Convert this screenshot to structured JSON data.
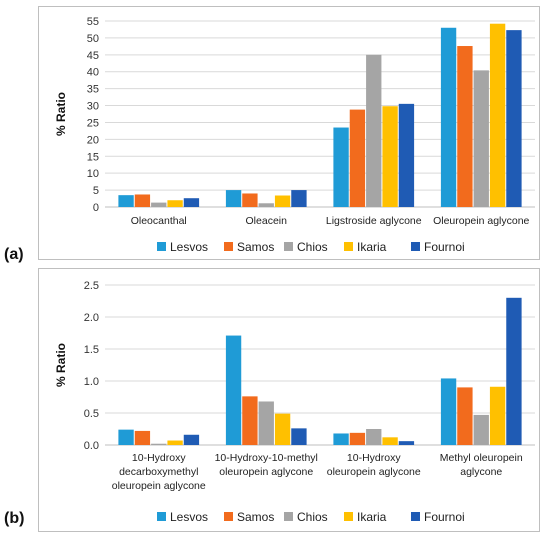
{
  "panel_labels": [
    "(a)",
    "(b)"
  ],
  "chart_data": [
    {
      "type": "bar",
      "ylabel": "% Ratio",
      "ylim": [
        0,
        55
      ],
      "yticks": [
        0,
        5,
        10,
        15,
        20,
        25,
        30,
        35,
        40,
        45,
        50,
        55
      ],
      "categories": [
        [
          "Oleocanthal"
        ],
        [
          "Oleacein"
        ],
        [
          "Ligstroside aglycone"
        ],
        [
          "Oleuropein aglycone"
        ]
      ],
      "series": [
        {
          "name": "Lesvos",
          "color": "#1f9bd6",
          "values": [
            3.5,
            5.0,
            23.5,
            53.0
          ]
        },
        {
          "name": "Samos",
          "color": "#f26b1d",
          "values": [
            3.7,
            4.0,
            28.8,
            47.6
          ]
        },
        {
          "name": "Chios",
          "color": "#a5a5a5",
          "values": [
            1.3,
            1.1,
            45.0,
            40.4
          ]
        },
        {
          "name": "Ikaria",
          "color": "#ffc000",
          "values": [
            2.0,
            3.4,
            29.8,
            54.2
          ]
        },
        {
          "name": "Fournoi",
          "color": "#1f5bb4",
          "values": [
            2.6,
            5.0,
            30.5,
            52.3
          ]
        }
      ],
      "legend": "bottom",
      "grid": "horizontal"
    },
    {
      "type": "bar",
      "ylabel": "% Ratio",
      "ylim": [
        0,
        2.5
      ],
      "yticks": [
        "0.0",
        "0.5",
        "1.0",
        "1.5",
        "2.0",
        "2.5"
      ],
      "categories": [
        [
          "10-Hydroxy",
          "decarboxymethyl",
          "oleuropein aglycone"
        ],
        [
          "10-Hydroxy-10-methyl",
          "oleuropein aglycone"
        ],
        [
          "10-Hydroxy",
          "oleuropein aglycone"
        ],
        [
          "Methyl oleuropein",
          "aglycone"
        ]
      ],
      "series": [
        {
          "name": "Lesvos",
          "color": "#1f9bd6",
          "values": [
            0.24,
            1.71,
            0.18,
            1.04
          ]
        },
        {
          "name": "Samos",
          "color": "#f26b1d",
          "values": [
            0.22,
            0.76,
            0.19,
            0.9
          ]
        },
        {
          "name": "Chios",
          "color": "#a5a5a5",
          "values": [
            0.02,
            0.68,
            0.25,
            0.47
          ]
        },
        {
          "name": "Ikaria",
          "color": "#ffc000",
          "values": [
            0.07,
            0.49,
            0.12,
            0.91
          ]
        },
        {
          "name": "Fournoi",
          "color": "#1f5bb4",
          "values": [
            0.16,
            0.26,
            0.06,
            2.3
          ]
        }
      ],
      "legend": "bottom",
      "grid": "horizontal"
    }
  ]
}
